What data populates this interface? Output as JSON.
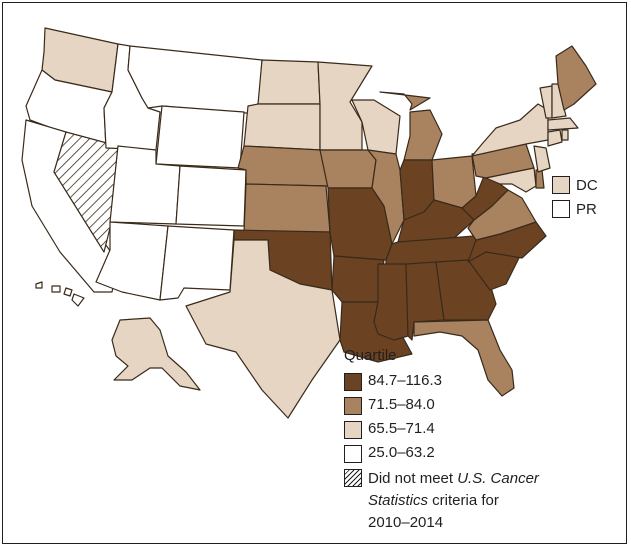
{
  "colors": {
    "q1": "#6b4323",
    "q2": "#a9825f",
    "q3": "#e6d5c3",
    "q4": "#ffffff",
    "outline": "#3a2a1a"
  },
  "legend": {
    "title": "Quartile",
    "items": [
      {
        "label": "84.7–116.3",
        "quartile": "q1"
      },
      {
        "label": "71.5–84.0",
        "quartile": "q2"
      },
      {
        "label": "65.5–71.4",
        "quartile": "q3"
      },
      {
        "label": "25.0–63.2",
        "quartile": "q4"
      }
    ],
    "criteria": {
      "prefix": "Did not meet ",
      "emphasis_1": "U.S. Cancer",
      "emphasis_2": "Statistics",
      "suffix": " criteria for",
      "years": "2010–2014"
    }
  },
  "territories": [
    {
      "label": "DC",
      "quartile": "q3"
    },
    {
      "label": "PR",
      "quartile": "q4"
    }
  ],
  "states": {
    "q1": [
      "MO",
      "AR",
      "LA",
      "MS",
      "AL",
      "GA",
      "SC",
      "NC",
      "TN",
      "KY",
      "WV",
      "IN",
      "OK"
    ],
    "q2": [
      "NE",
      "KS",
      "IA",
      "IL",
      "MI",
      "OH",
      "PA",
      "VA",
      "FL",
      "ME",
      "DE"
    ],
    "q3": [
      "WA",
      "ND",
      "SD",
      "MN",
      "WI",
      "TX",
      "AK",
      "NY",
      "VT",
      "NH",
      "MA",
      "CT",
      "RI",
      "NJ",
      "MD",
      "DC"
    ],
    "q4": [
      "OR",
      "CA",
      "ID",
      "MT",
      "WY",
      "UT",
      "CO",
      "AZ",
      "NM",
      "HI",
      "PR"
    ],
    "not_met": [
      "NV"
    ]
  }
}
